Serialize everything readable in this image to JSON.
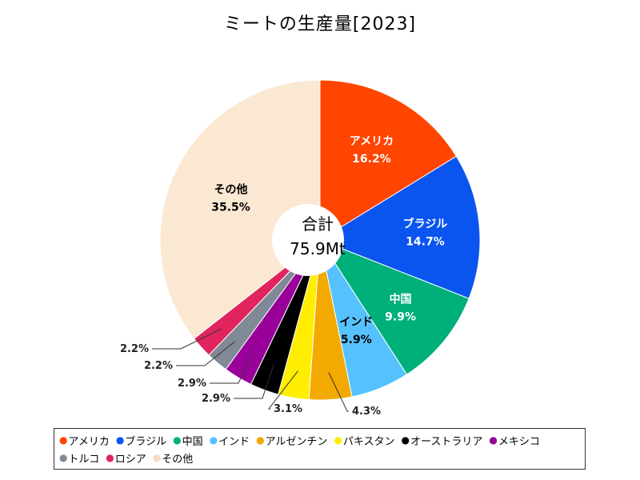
{
  "chart_data": {
    "type": "pie",
    "title": "ミートの生産量[2023]",
    "center_label": "合計",
    "center_value": "75.9Mt",
    "slices": [
      {
        "name": "アメリカ",
        "value": 16.2,
        "label": "16.2%",
        "color": "#ff4500",
        "text_color": "#ffffff"
      },
      {
        "name": "ブラジル",
        "value": 14.7,
        "label": "14.7%",
        "color": "#0a55f0",
        "text_color": "#ffffff"
      },
      {
        "name": "中国",
        "value": 9.9,
        "label": "9.9%",
        "color": "#00b07a",
        "text_color": "#ffffff"
      },
      {
        "name": "インド",
        "value": 5.9,
        "label": "5.9%",
        "color": "#55c2ff",
        "text_color": "#000000"
      },
      {
        "name": "アルゼンチン",
        "value": 4.3,
        "label": "4.3%",
        "color": "#f2a900",
        "text_color": "#000000"
      },
      {
        "name": "パキスタン",
        "value": 3.1,
        "label": "3.1%",
        "color": "#ffee00",
        "text_color": "#000000"
      },
      {
        "name": "オーストラリア",
        "value": 2.9,
        "label": "2.9%",
        "color": "#000000",
        "text_color": "#000000"
      },
      {
        "name": "メキシコ",
        "value": 2.9,
        "label": "2.9%",
        "color": "#990099",
        "text_color": "#000000"
      },
      {
        "name": "トルコ",
        "value": 2.2,
        "label": "2.2%",
        "color": "#7f8a96",
        "text_color": "#000000"
      },
      {
        "name": "ロシア",
        "value": 2.2,
        "label": "2.2%",
        "color": "#e0245e",
        "text_color": "#000000"
      },
      {
        "name": "その他",
        "value": 35.5,
        "label": "35.5%",
        "color": "#fbe8d2",
        "text_color": "#000000"
      }
    ]
  },
  "legend": {
    "rows": [
      [
        "アメリカ",
        "ブラジル",
        "中国",
        "インド",
        "アルゼンチン",
        "パキスタン",
        "オーストラリア",
        "メキシコ"
      ],
      [
        "トルコ",
        "ロシア",
        "その他"
      ]
    ]
  }
}
